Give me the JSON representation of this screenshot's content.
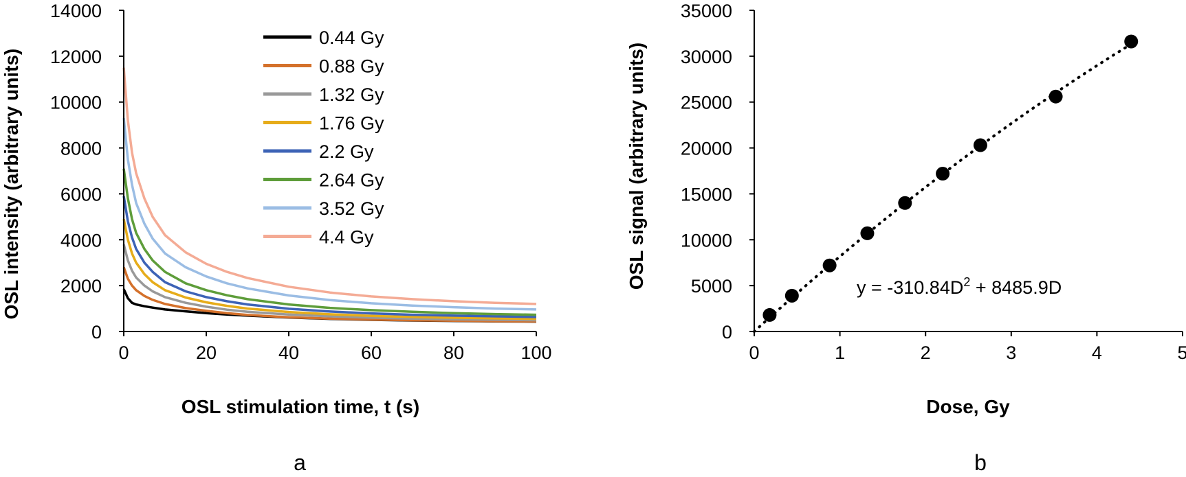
{
  "chart_data": [
    {
      "panel_label": "a",
      "type": "line",
      "xlabel": "OSL stimulation time, t (s)",
      "ylabel": "OSL intensity (arbitrary units)",
      "xlim": [
        0,
        100
      ],
      "ylim": [
        0,
        14000
      ],
      "xticks": [
        "0",
        "20",
        "40",
        "60",
        "80",
        "100"
      ],
      "yticks": [
        "0",
        "2000",
        "4000",
        "6000",
        "8000",
        "10000",
        "12000",
        "14000"
      ],
      "grid": false,
      "legend_position": "top-center",
      "x": [
        0,
        1,
        2,
        3,
        5,
        7,
        10,
        15,
        20,
        25,
        30,
        40,
        50,
        60,
        70,
        80,
        90,
        100
      ],
      "series": [
        {
          "name": "0.44 Gy",
          "color": "#000000",
          "values": [
            1850,
            1450,
            1250,
            1180,
            1100,
            1040,
            960,
            880,
            800,
            740,
            690,
            610,
            550,
            510,
            480,
            460,
            440,
            430
          ]
        },
        {
          "name": "0.88 Gy",
          "color": "#d4712b",
          "values": [
            2800,
            2300,
            2000,
            1800,
            1550,
            1380,
            1200,
            1020,
            900,
            800,
            720,
            620,
            560,
            520,
            490,
            470,
            450,
            440
          ]
        },
        {
          "name": "1.32 Gy",
          "color": "#999999",
          "values": [
            3800,
            3100,
            2650,
            2350,
            2000,
            1750,
            1500,
            1250,
            1080,
            950,
            860,
            740,
            660,
            600,
            560,
            530,
            510,
            490
          ]
        },
        {
          "name": "1.76 Gy",
          "color": "#e6ac1a",
          "values": [
            4900,
            4000,
            3400,
            3000,
            2500,
            2150,
            1800,
            1480,
            1270,
            1120,
            1000,
            850,
            750,
            680,
            630,
            600,
            570,
            550
          ]
        },
        {
          "name": "2.2 Gy",
          "color": "#3d63b6",
          "values": [
            5900,
            4800,
            4100,
            3600,
            3000,
            2600,
            2150,
            1750,
            1500,
            1320,
            1180,
            990,
            870,
            790,
            730,
            690,
            660,
            630
          ]
        },
        {
          "name": "2.64 Gy",
          "color": "#5e9d3a",
          "values": [
            7100,
            5800,
            4900,
            4300,
            3600,
            3100,
            2600,
            2100,
            1800,
            1580,
            1410,
            1180,
            1030,
            930,
            860,
            800,
            760,
            730
          ]
        },
        {
          "name": "3.52 Gy",
          "color": "#9bbde4",
          "values": [
            9300,
            7500,
            6400,
            5600,
            4700,
            4050,
            3400,
            2800,
            2400,
            2100,
            1880,
            1570,
            1370,
            1230,
            1130,
            1060,
            1000,
            960
          ]
        },
        {
          "name": "4.4 Gy",
          "color": "#f4ab95",
          "values": [
            11500,
            9200,
            7800,
            6900,
            5800,
            5000,
            4200,
            3450,
            2950,
            2600,
            2330,
            1950,
            1700,
            1530,
            1410,
            1320,
            1250,
            1200
          ]
        }
      ]
    },
    {
      "panel_label": "b",
      "type": "scatter",
      "xlabel": "Dose, Gy",
      "ylabel": "OSL signal (arbitrary units)",
      "xlim": [
        0,
        5
      ],
      "ylim": [
        0,
        35000
      ],
      "xticks": [
        "0",
        "1",
        "2",
        "3",
        "4",
        "5"
      ],
      "yticks": [
        "0",
        "5000",
        "10000",
        "15000",
        "20000",
        "25000",
        "30000",
        "35000"
      ],
      "grid": false,
      "points": [
        {
          "x": 0.18,
          "y": 1800
        },
        {
          "x": 0.44,
          "y": 3900
        },
        {
          "x": 0.88,
          "y": 7200
        },
        {
          "x": 1.32,
          "y": 10700
        },
        {
          "x": 1.76,
          "y": 14000
        },
        {
          "x": 2.2,
          "y": 17200
        },
        {
          "x": 2.64,
          "y": 20300
        },
        {
          "x": 3.52,
          "y": 25600
        },
        {
          "x": 4.4,
          "y": 31600
        }
      ],
      "trendline": {
        "type": "polynomial",
        "a": -310.84,
        "b": 8485.9,
        "x_from": 0,
        "x_to": 4.4,
        "style": "dotted"
      },
      "equation": {
        "prefix": "y = -310.84D",
        "superscript": "2",
        "suffix": " + 8485.9D"
      }
    }
  ]
}
